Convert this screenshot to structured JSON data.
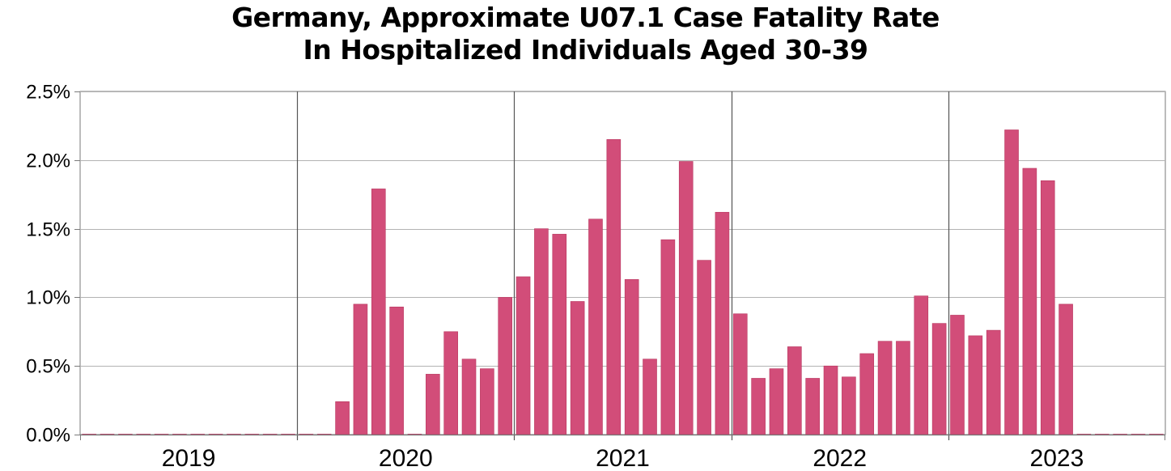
{
  "chart_data": {
    "type": "bar",
    "title_lines": [
      "Germany, Approximate U07.1 Case Fatality Rate",
      "In Hospitalized Individuals Aged 30-39"
    ],
    "xlabel": "",
    "ylabel": "",
    "ylim": [
      0,
      2.5
    ],
    "y_ticks": [
      "0.0%",
      "0.5%",
      "1.0%",
      "1.5%",
      "2.0%",
      "2.5%"
    ],
    "y_tick_values": [
      0,
      0.5,
      1.0,
      1.5,
      2.0,
      2.5
    ],
    "year_labels": [
      "2019",
      "2020",
      "2021",
      "2022",
      "2023"
    ],
    "months_per_year": 12,
    "grid": true,
    "bar_color": "#d24d79",
    "bar_edge_color": "#b8375f",
    "values": [
      0,
      0,
      0,
      0,
      0,
      0,
      0,
      0,
      0,
      0,
      0,
      0,
      0,
      0,
      0.24,
      0.95,
      1.79,
      0.93,
      0,
      0.44,
      0.75,
      0.55,
      0.48,
      1.0,
      1.15,
      1.5,
      1.46,
      0.97,
      1.57,
      2.15,
      1.13,
      0.55,
      1.42,
      1.99,
      1.27,
      1.62,
      0.88,
      0.41,
      0.48,
      0.64,
      0.41,
      0.5,
      0.42,
      0.59,
      0.68,
      0.68,
      1.01,
      0.81,
      0.87,
      0.72,
      0.76,
      2.22,
      1.94,
      1.85,
      0.95,
      0,
      0,
      0,
      0,
      0
    ]
  }
}
